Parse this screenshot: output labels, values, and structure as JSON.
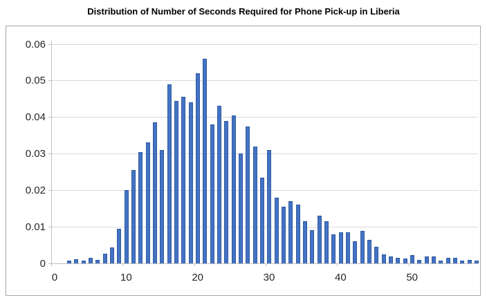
{
  "title": "Distribution of Number of Seconds Required for Phone Pick-up in Liberia",
  "colors": {
    "bar_fill": "#4472C4",
    "bar_border": "#2E5B9F",
    "gridline": "#D9D9D9",
    "axis_line": "#BFBFBF",
    "chart_border": "#A6A6A6",
    "label_text": "#262626",
    "title_text": "#000000"
  },
  "chart_data": {
    "type": "bar",
    "title": "Distribution of Number of Seconds Required for Phone Pick-up in Liberia",
    "xlabel": "",
    "ylabel": "",
    "x": [
      2,
      3,
      4,
      5,
      6,
      7,
      8,
      9,
      10,
      11,
      12,
      13,
      14,
      15,
      16,
      17,
      18,
      19,
      20,
      21,
      22,
      23,
      24,
      25,
      26,
      27,
      28,
      29,
      30,
      31,
      32,
      33,
      34,
      35,
      36,
      37,
      38,
      39,
      40,
      41,
      42,
      43,
      44,
      45,
      46,
      47,
      48,
      49,
      50,
      51,
      52,
      53,
      54,
      55,
      56,
      57,
      58,
      59
    ],
    "values": [
      0.0008,
      0.0011,
      0.0007,
      0.0015,
      0.001,
      0.0026,
      0.0043,
      0.0095,
      0.02,
      0.0255,
      0.0305,
      0.033,
      0.0385,
      0.031,
      0.049,
      0.0445,
      0.0455,
      0.044,
      0.052,
      0.056,
      0.038,
      0.043,
      0.039,
      0.0405,
      0.03,
      0.0375,
      0.032,
      0.0235,
      0.031,
      0.018,
      0.0155,
      0.017,
      0.016,
      0.0115,
      0.009,
      0.013,
      0.0115,
      0.008,
      0.0085,
      0.0085,
      0.006,
      0.0088,
      0.0065,
      0.0045,
      0.0024,
      0.0019,
      0.0015,
      0.0013,
      0.0023,
      0.001,
      0.0018,
      0.0018,
      0.0007,
      0.0016,
      0.0016,
      0.0007,
      0.0009,
      0.0007
    ],
    "xlim": [
      0,
      60
    ],
    "ylim": [
      0,
      0.06
    ],
    "yticks": [
      0,
      0.01,
      0.02,
      0.03,
      0.04,
      0.05,
      0.06
    ],
    "ytick_labels": [
      "0",
      "0.01",
      "0.02",
      "0.03",
      "0.04",
      "0.05",
      "0.06"
    ],
    "xticks": [
      0,
      10,
      20,
      30,
      40,
      50
    ],
    "xtick_labels": [
      "0",
      "10",
      "20",
      "30",
      "40",
      "50"
    ],
    "grid": "horizontal",
    "legend": "none"
  }
}
